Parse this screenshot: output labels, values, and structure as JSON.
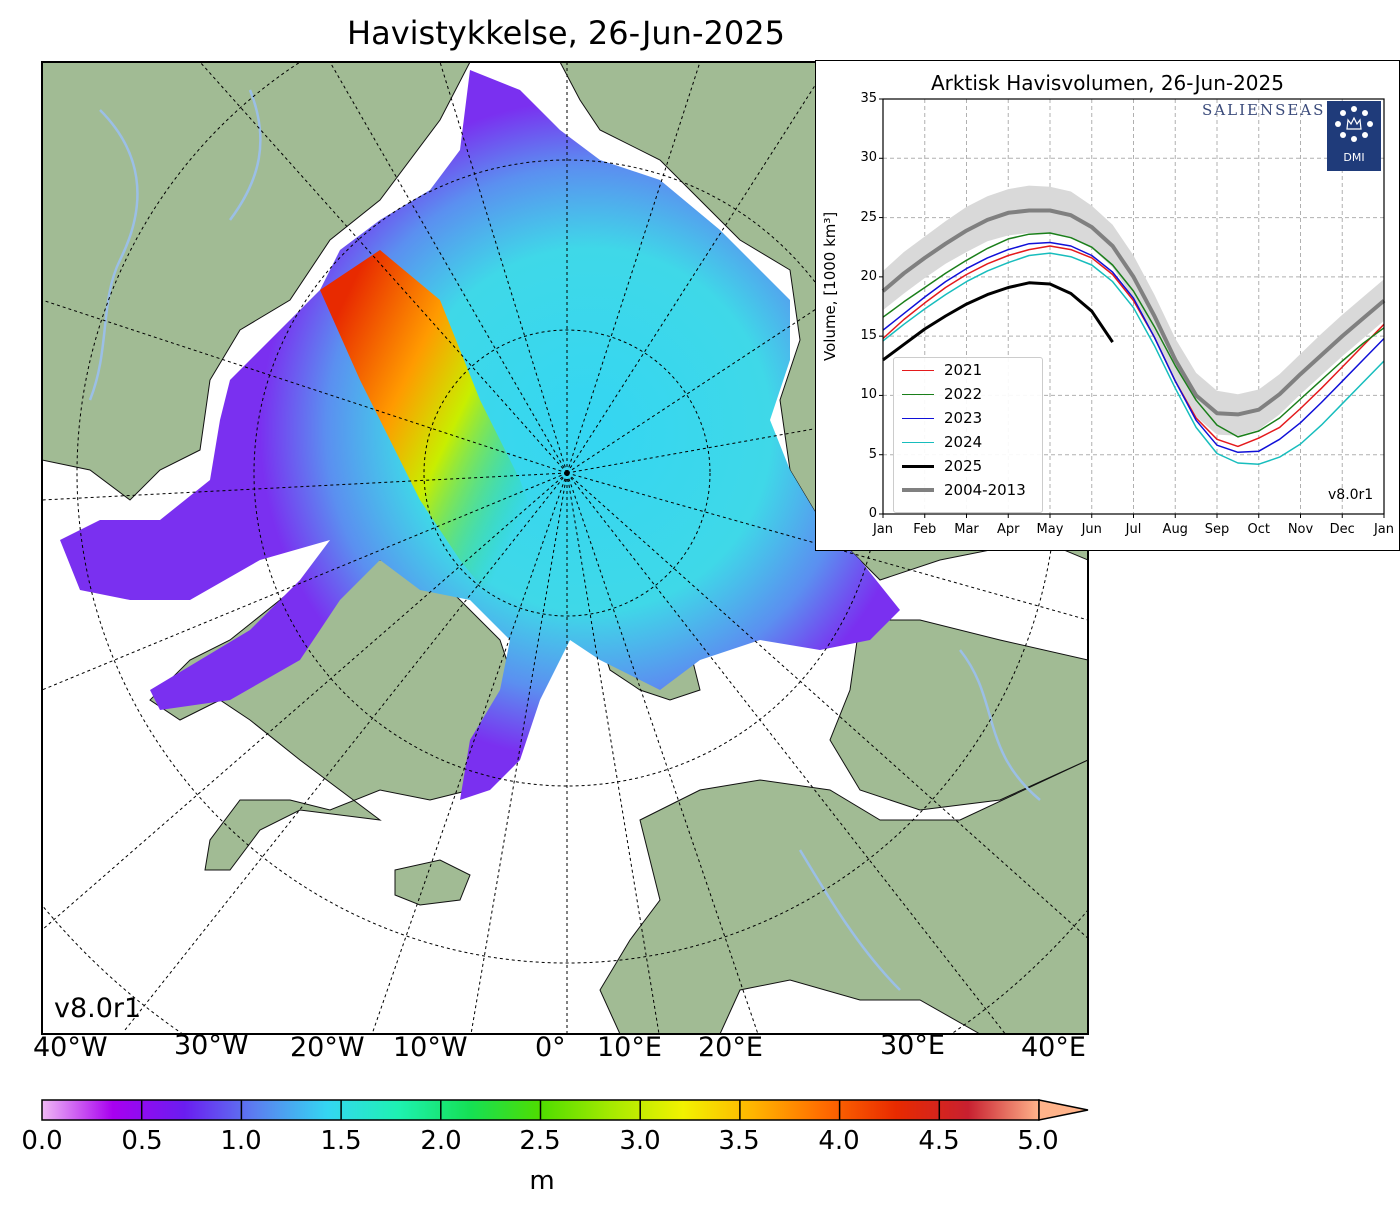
{
  "map": {
    "title": "Havistykkelse, 26-Jun-2025",
    "version": "v8.0r1",
    "lon_labels": [
      "40°W",
      "30°W",
      "20°W",
      "10°W",
      "0°",
      "10°E",
      "20°E",
      "30°E",
      "40°E"
    ],
    "colors": {
      "land": "#a1bb94",
      "rivers": "#9bbfe6",
      "open_water": "#ffffff",
      "grid": "#000000"
    }
  },
  "colorbar": {
    "ticks": [
      "0.0",
      "0.5",
      "1.0",
      "1.5",
      "2.0",
      "2.5",
      "3.0",
      "3.5",
      "4.0",
      "4.5",
      "5.0"
    ],
    "unit": "m",
    "extend": "max",
    "stops": [
      "#f0b8f5",
      "#a800f0",
      "#6a1df0",
      "#5b7ff0",
      "#34d6f2",
      "#1ef2b2",
      "#15e055",
      "#4fdd00",
      "#a6ea00",
      "#f2f200",
      "#ffb400",
      "#ff6a00",
      "#e82a00",
      "#c82030",
      "#ffb38a"
    ]
  },
  "chart_data": {
    "type": "line",
    "title": "Arktisk Havisvolumen, 26-Jun-2025",
    "ylabel": "Volume, [1000 km³]",
    "xlabel": "",
    "ylim": [
      0,
      35
    ],
    "yticks": [
      "0",
      "5",
      "10",
      "15",
      "20",
      "25",
      "30",
      "35"
    ],
    "xticks": [
      "Jan",
      "Feb",
      "Mar",
      "Apr",
      "May",
      "Jun",
      "Jul",
      "Aug",
      "Sep",
      "Oct",
      "Nov",
      "Dec",
      "Jan"
    ],
    "grid": true,
    "legend_position": "lower-left",
    "version": "v8.0r1",
    "logos": {
      "salienseas": "SALIENSEAS",
      "dmi": "DMI"
    },
    "x": [
      0,
      1,
      2,
      3,
      4,
      5,
      6,
      7,
      8,
      9,
      10,
      11,
      12,
      13,
      14,
      15,
      16,
      17,
      18,
      19,
      20,
      21,
      22,
      23,
      24
    ],
    "series": [
      {
        "name": "2021",
        "color": "#e41a1c",
        "values": [
          14.8,
          16.4,
          17.8,
          19.1,
          20.2,
          21.1,
          21.8,
          22.3,
          22.6,
          22.3,
          21.6,
          20.2,
          18.0,
          14.9,
          11.2,
          8.1,
          6.3,
          5.7,
          6.4,
          7.3,
          8.9,
          10.6,
          12.4,
          14.2,
          16.0
        ]
      },
      {
        "name": "2022",
        "color": "#1a7f1a",
        "values": [
          16.6,
          17.9,
          19.1,
          20.3,
          21.4,
          22.4,
          23.2,
          23.6,
          23.7,
          23.3,
          22.5,
          21.0,
          18.8,
          15.8,
          12.5,
          9.6,
          7.5,
          6.5,
          7.0,
          8.1,
          9.7,
          11.3,
          12.9,
          14.4,
          15.7
        ]
      },
      {
        "name": "2023",
        "color": "#1010d8",
        "values": [
          15.5,
          16.9,
          18.3,
          19.6,
          20.7,
          21.6,
          22.3,
          22.8,
          22.9,
          22.6,
          21.8,
          20.4,
          18.2,
          14.9,
          11.2,
          7.9,
          5.8,
          5.2,
          5.3,
          6.3,
          7.7,
          9.4,
          11.2,
          13.0,
          14.8
        ]
      },
      {
        "name": "2024",
        "color": "#17bdbd",
        "values": [
          14.6,
          16.0,
          17.3,
          18.5,
          19.6,
          20.5,
          21.2,
          21.8,
          22.0,
          21.7,
          21.0,
          19.6,
          17.4,
          14.2,
          10.6,
          7.3,
          5.1,
          4.3,
          4.2,
          4.8,
          5.9,
          7.5,
          9.3,
          11.1,
          12.9
        ]
      },
      {
        "name": "2025",
        "color": "#000000",
        "values": [
          13.0,
          14.3,
          15.6,
          16.7,
          17.7,
          18.5,
          19.1,
          19.5,
          19.4,
          18.6,
          17.1,
          14.5,
          null,
          null,
          null,
          null,
          null,
          null,
          null,
          null,
          null,
          null,
          null,
          null,
          null
        ]
      },
      {
        "name": "2004-2013",
        "color": "#808080",
        "values": [
          18.8,
          20.3,
          21.6,
          22.8,
          23.9,
          24.8,
          25.4,
          25.6,
          25.6,
          25.2,
          24.2,
          22.6,
          20.0,
          16.7,
          13.0,
          10.0,
          8.5,
          8.4,
          8.8,
          10.1,
          11.8,
          13.4,
          15.0,
          16.5,
          18.0
        ]
      }
    ],
    "spread_band": {
      "series": "2004-2013",
      "color": "#d9d9d9",
      "upper": [
        20.5,
        22.1,
        23.4,
        24.7,
        25.9,
        26.8,
        27.4,
        27.7,
        27.6,
        27.2,
        26.0,
        24.4,
        21.8,
        18.5,
        14.8,
        11.9,
        10.4,
        10.1,
        10.5,
        11.8,
        13.5,
        15.2,
        16.8,
        18.3,
        19.8
      ],
      "lower": [
        17.2,
        18.6,
        19.9,
        21.1,
        22.1,
        23.0,
        23.5,
        23.7,
        23.7,
        23.3,
        22.4,
        20.8,
        18.2,
        14.9,
        11.2,
        8.2,
        6.7,
        6.6,
        7.1,
        8.4,
        10.1,
        11.7,
        13.3,
        14.8,
        16.3
      ]
    }
  }
}
